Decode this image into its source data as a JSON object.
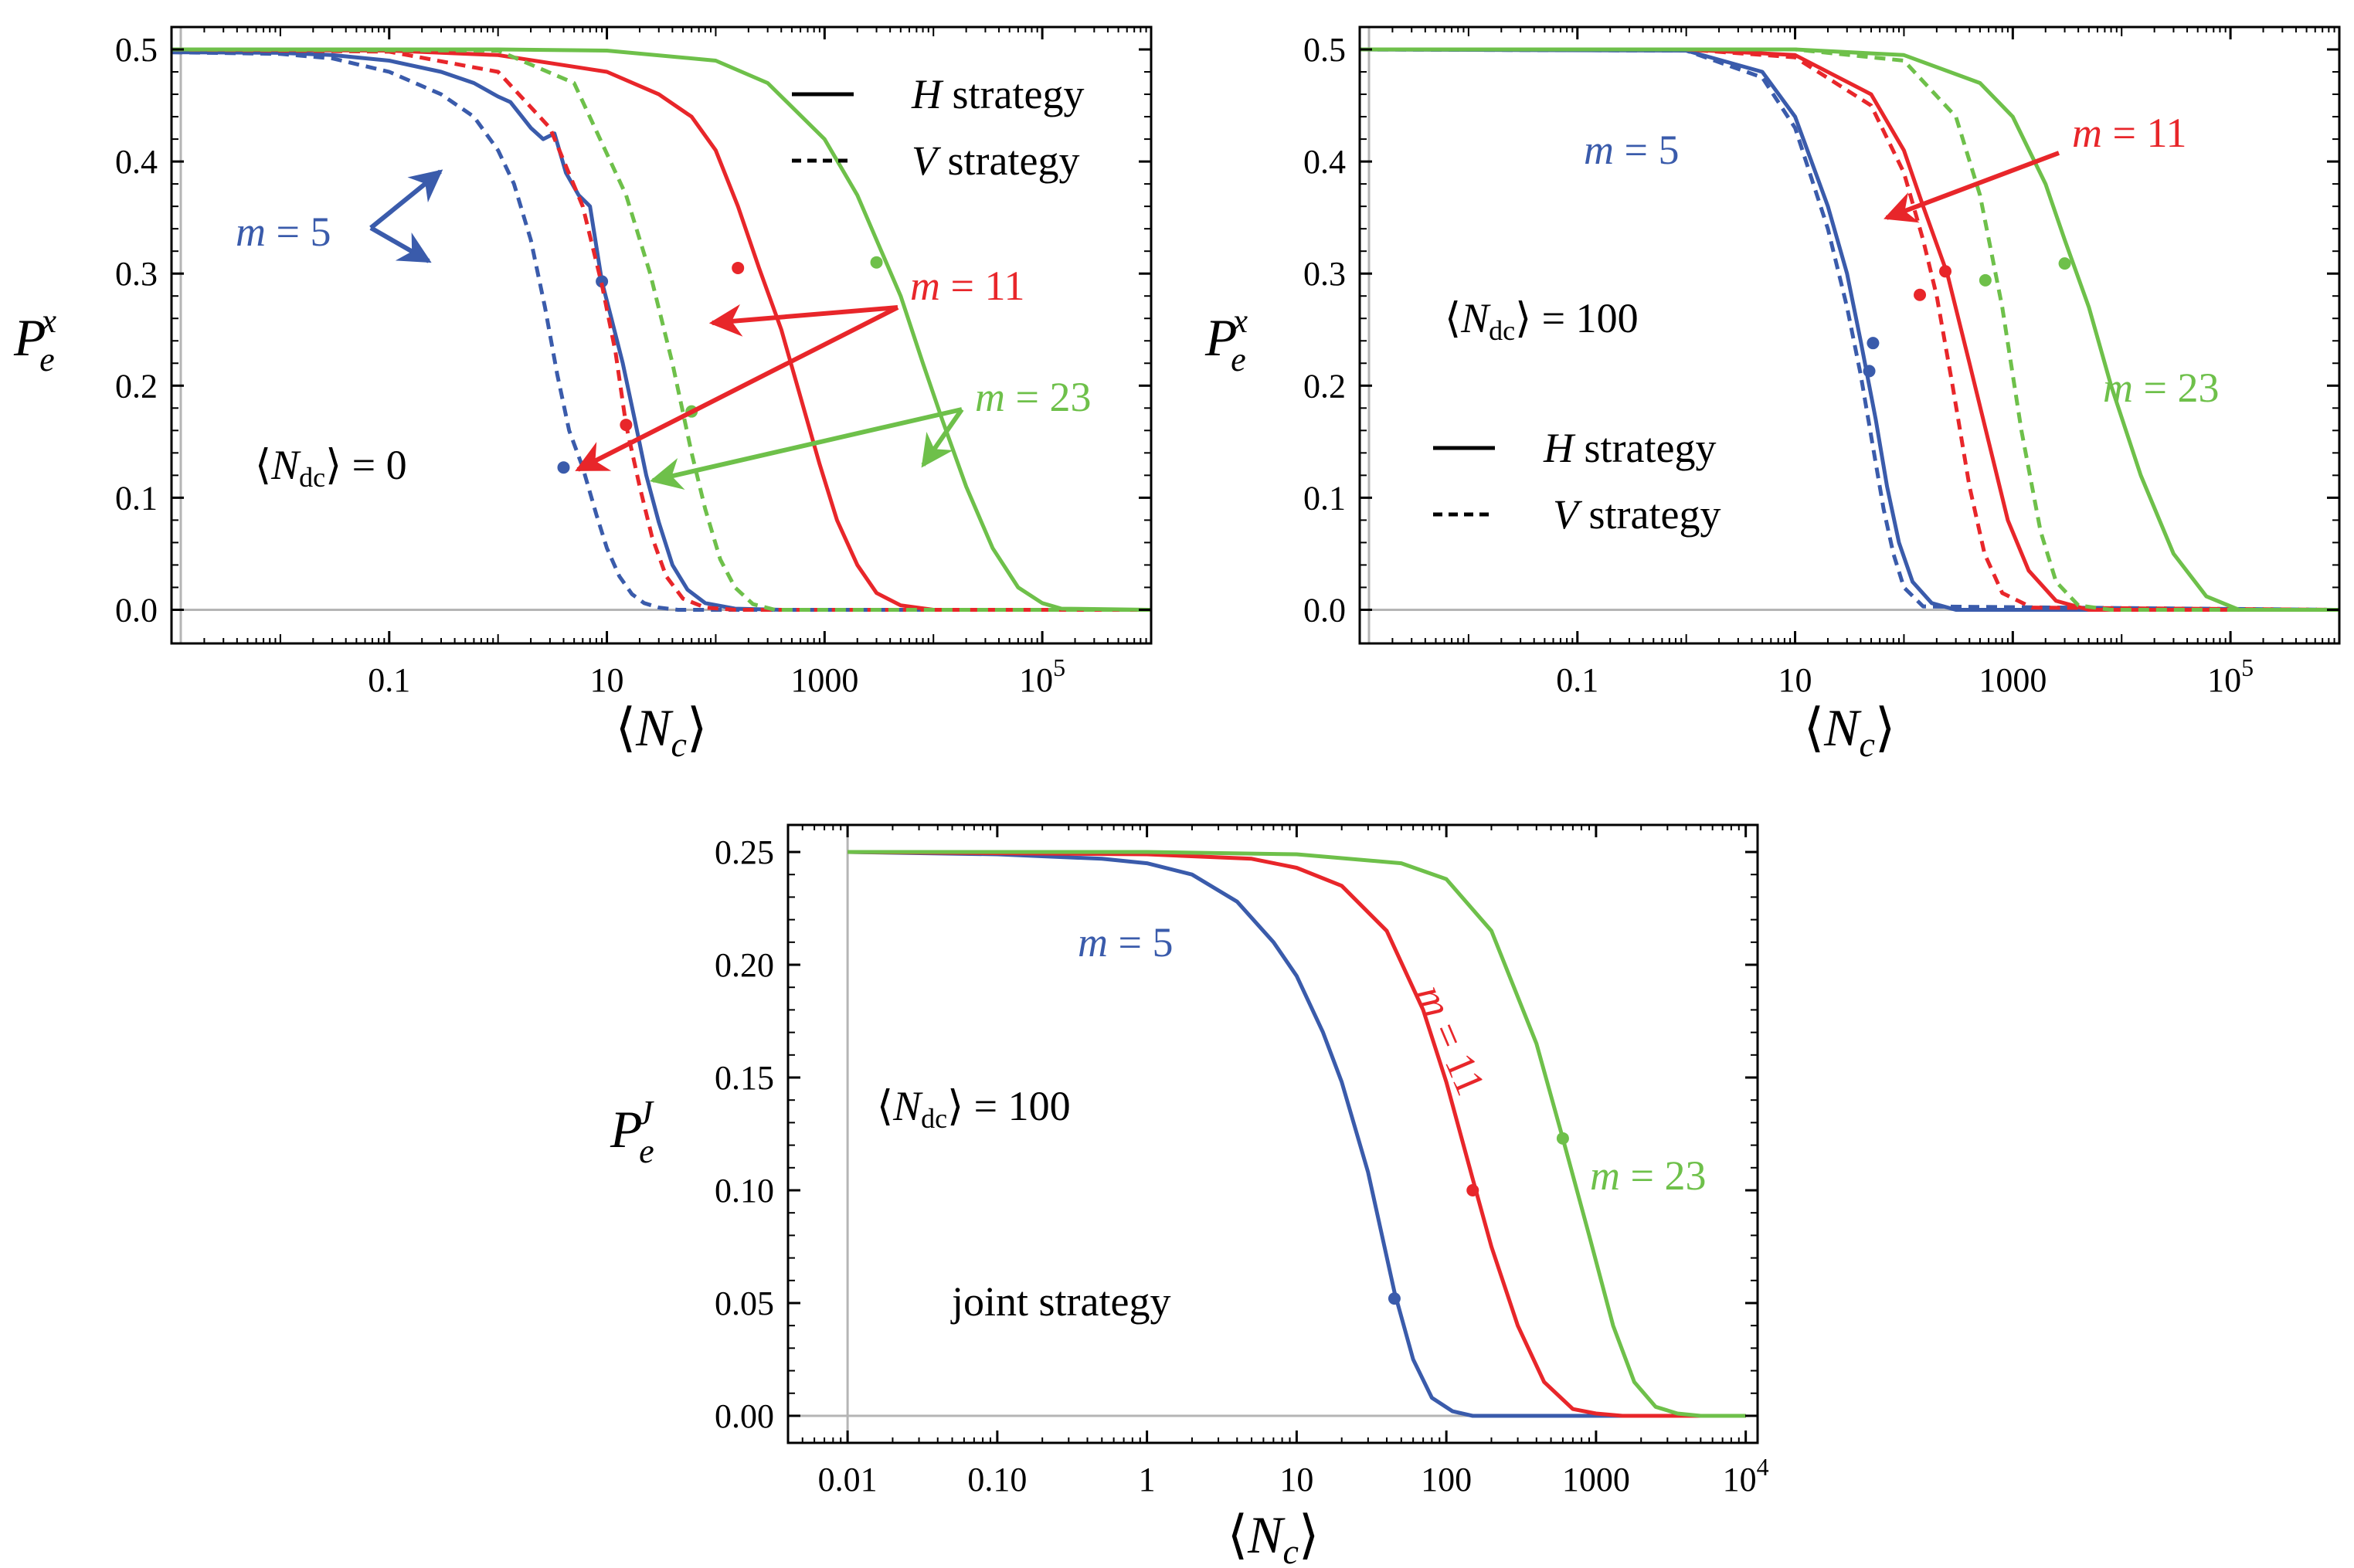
{
  "colors": {
    "m5": "#3a5bab",
    "m11": "#e8262a",
    "m23": "#6ec04a",
    "axis": "#000000",
    "zero": "#b5b5b5"
  },
  "chart_data": [
    {
      "type": "line",
      "id": "top-left",
      "x_scale": "log",
      "xlim": [
        0.001,
        1000000
      ],
      "ylim": [
        -0.03,
        0.52
      ],
      "xticks": [
        {
          "v": 0.1,
          "label": "0.1"
        },
        {
          "v": 10,
          "label": "10"
        },
        {
          "v": 1000,
          "label": "1000"
        },
        {
          "v": 100000,
          "label": "10",
          "sup": "5"
        }
      ],
      "yticks": [
        "0.0",
        "0.1",
        "0.2",
        "0.3",
        "0.4",
        "0.5"
      ],
      "xlabel": "⟨N_c⟩",
      "ylabel": "P_e^x",
      "condition": "⟨N_dc⟩ = 0",
      "legend": [
        "H strategy",
        "V strategy"
      ],
      "series": [
        {
          "name": "m = 5",
          "strategy": "H",
          "color": "m5",
          "style": "solid",
          "x": [
            0.001,
            0.01,
            0.03,
            0.1,
            0.3,
            0.6,
            1,
            1.3,
            1.6,
            2,
            2.6,
            3.3,
            4.2,
            5.5,
            7,
            9,
            11,
            14,
            18,
            23,
            30,
            40,
            55,
            80,
            150,
            400,
            1000000
          ],
          "y": [
            0.4975,
            0.497,
            0.495,
            0.49,
            0.48,
            0.47,
            0.458,
            0.453,
            0.442,
            0.43,
            0.42,
            0.425,
            0.39,
            0.37,
            0.36,
            0.293,
            0.26,
            0.22,
            0.17,
            0.12,
            0.078,
            0.04,
            0.018,
            0.006,
            0.001,
            0,
            0
          ],
          "marker": {
            "x": 9,
            "y": 0.293
          }
        },
        {
          "name": "m = 5",
          "strategy": "V",
          "color": "m5",
          "style": "dashed",
          "x": [
            0.001,
            0.01,
            0.03,
            0.1,
            0.3,
            0.6,
            1,
            1.4,
            2,
            2.7,
            3.5,
            4.5,
            6,
            8,
            10,
            13,
            17,
            22,
            30,
            45,
            80,
            1000000
          ],
          "y": [
            0.4975,
            0.496,
            0.492,
            0.48,
            0.46,
            0.44,
            0.41,
            0.38,
            0.33,
            0.27,
            0.21,
            0.16,
            0.127,
            0.085,
            0.055,
            0.03,
            0.014,
            0.006,
            0.002,
            0,
            0,
            0
          ],
          "marker": {
            "x": 4,
            "y": 0.127
          }
        },
        {
          "name": "m = 11",
          "strategy": "H",
          "color": "m11",
          "style": "solid",
          "x": [
            0.001,
            0.1,
            1,
            10,
            30,
            60,
            100,
            160,
            250,
            400,
            600,
            900,
            1300,
            2000,
            3000,
            5000,
            10000,
            1000000
          ],
          "y": [
            0.5,
            0.499,
            0.495,
            0.48,
            0.46,
            0.44,
            0.41,
            0.36,
            0.305,
            0.25,
            0.19,
            0.13,
            0.08,
            0.04,
            0.015,
            0.004,
            0,
            0
          ],
          "marker": {
            "x": 160,
            "y": 0.305
          }
        },
        {
          "name": "m = 11",
          "strategy": "V",
          "color": "m11",
          "style": "dashed",
          "x": [
            0.001,
            0.1,
            1,
            3,
            6,
            9,
            12,
            15,
            20,
            26,
            35,
            50,
            80,
            150,
            1000000
          ],
          "y": [
            0.5,
            0.498,
            0.48,
            0.43,
            0.36,
            0.29,
            0.23,
            0.165,
            0.11,
            0.065,
            0.03,
            0.01,
            0.002,
            0,
            0
          ],
          "marker": {
            "x": 15,
            "y": 0.165
          }
        },
        {
          "name": "m = 23",
          "strategy": "H",
          "color": "m23",
          "style": "solid",
          "x": [
            0.001,
            1,
            10,
            100,
            300,
            1000,
            2000,
            3000,
            5000,
            8000,
            12000,
            20000,
            35000,
            60000,
            100000,
            150000,
            1000000
          ],
          "y": [
            0.5,
            0.5,
            0.499,
            0.49,
            0.47,
            0.42,
            0.37,
            0.33,
            0.28,
            0.22,
            0.17,
            0.11,
            0.055,
            0.02,
            0.006,
            0.001,
            0
          ],
          "marker": {
            "x": 3000,
            "y": 0.31
          }
        },
        {
          "name": "m = 23",
          "strategy": "V",
          "color": "m23",
          "style": "dashed",
          "x": [
            0.001,
            1,
            5,
            15,
            25,
            40,
            60,
            80,
            110,
            150,
            220,
            350,
            1000000
          ],
          "y": [
            0.5,
            0.499,
            0.47,
            0.37,
            0.3,
            0.22,
            0.14,
            0.09,
            0.045,
            0.02,
            0.005,
            0,
            0
          ],
          "marker": {
            "x": 60,
            "y": 0.177
          }
        }
      ],
      "labels": [
        {
          "text": "m = 5",
          "color": "m5"
        },
        {
          "text": "m = 11",
          "color": "m11"
        },
        {
          "text": "m = 23",
          "color": "m23"
        }
      ]
    },
    {
      "type": "line",
      "id": "top-right",
      "x_scale": "log",
      "xlim": [
        0.001,
        1000000
      ],
      "ylim": [
        -0.03,
        0.52
      ],
      "xticks": [
        {
          "v": 0.1,
          "label": "0.1"
        },
        {
          "v": 10,
          "label": "10"
        },
        {
          "v": 1000,
          "label": "1000"
        },
        {
          "v": 100000,
          "label": "10",
          "sup": "5"
        }
      ],
      "yticks": [
        "0.0",
        "0.1",
        "0.2",
        "0.3",
        "0.4",
        "0.5"
      ],
      "xlabel": "⟨N_c⟩",
      "ylabel": "P_e^x",
      "condition": "⟨N_dc⟩ = 100",
      "legend": [
        "H strategy",
        "V strategy"
      ],
      "series": [
        {
          "name": "m = 5",
          "strategy": "H",
          "color": "m5",
          "style": "solid",
          "x": [
            0.001,
            1,
            5,
            10,
            20,
            30,
            40,
            55,
            70,
            90,
            120,
            180,
            300,
            1000000
          ],
          "y": [
            0.5,
            0.499,
            0.48,
            0.44,
            0.36,
            0.3,
            0.24,
            0.17,
            0.11,
            0.06,
            0.025,
            0.006,
            0,
            0
          ],
          "marker": {
            "x": 52,
            "y": 0.238
          }
        },
        {
          "name": "m = 5",
          "strategy": "V",
          "color": "m5",
          "style": "dashed",
          "x": [
            0.001,
            1,
            5,
            10,
            20,
            30,
            40,
            50,
            65,
            80,
            100,
            150,
            1000000
          ],
          "y": [
            0.5,
            0.499,
            0.475,
            0.43,
            0.34,
            0.27,
            0.21,
            0.155,
            0.09,
            0.05,
            0.02,
            0.003,
            0
          ],
          "marker": {
            "x": 48,
            "y": 0.213
          }
        },
        {
          "name": "m = 11",
          "strategy": "H",
          "color": "m11",
          "style": "solid",
          "x": [
            0.001,
            1,
            10,
            50,
            100,
            150,
            250,
            400,
            600,
            900,
            1400,
            2500,
            5000,
            1000000
          ],
          "y": [
            0.5,
            0.5,
            0.495,
            0.46,
            0.41,
            0.36,
            0.3,
            0.22,
            0.15,
            0.08,
            0.035,
            0.008,
            0,
            0
          ],
          "marker": {
            "x": 240,
            "y": 0.302
          }
        },
        {
          "name": "m = 11",
          "strategy": "V",
          "color": "m11",
          "style": "dashed",
          "x": [
            0.001,
            1,
            10,
            50,
            100,
            150,
            200,
            280,
            400,
            550,
            800,
            1500,
            1000000
          ],
          "y": [
            0.5,
            0.5,
            0.493,
            0.45,
            0.39,
            0.33,
            0.28,
            0.2,
            0.11,
            0.05,
            0.015,
            0.002,
            0
          ],
          "marker": {
            "x": 140,
            "y": 0.281
          }
        },
        {
          "name": "m = 23",
          "strategy": "H",
          "color": "m23",
          "style": "solid",
          "x": [
            0.001,
            10,
            100,
            500,
            1000,
            2000,
            3000,
            5000,
            8000,
            15000,
            30000,
            60000,
            120000,
            1000000
          ],
          "y": [
            0.5,
            0.5,
            0.495,
            0.47,
            0.44,
            0.38,
            0.33,
            0.27,
            0.2,
            0.12,
            0.05,
            0.012,
            0,
            0
          ],
          "marker": {
            "x": 3000,
            "y": 0.309
          }
        },
        {
          "name": "m = 23",
          "strategy": "V",
          "color": "m23",
          "style": "dashed",
          "x": [
            0.001,
            10,
            100,
            300,
            500,
            800,
            1200,
            1800,
            2500,
            4000,
            8000,
            1000000
          ],
          "y": [
            0.5,
            0.5,
            0.49,
            0.44,
            0.37,
            0.27,
            0.16,
            0.07,
            0.025,
            0.004,
            0,
            0
          ],
          "marker": {
            "x": 560,
            "y": 0.294
          }
        }
      ],
      "labels": [
        {
          "text": "m = 5",
          "color": "m5"
        },
        {
          "text": "m = 11",
          "color": "m11"
        },
        {
          "text": "m = 23",
          "color": "m23"
        }
      ]
    },
    {
      "type": "line",
      "id": "bottom",
      "x_scale": "log",
      "xlim": [
        0.004,
        12000
      ],
      "ylim": [
        -0.012,
        0.262
      ],
      "xticks": [
        {
          "v": 0.01,
          "label": "0.01"
        },
        {
          "v": 0.1,
          "label": "0.10"
        },
        {
          "v": 1,
          "label": "1"
        },
        {
          "v": 10,
          "label": "10"
        },
        {
          "v": 100,
          "label": "100"
        },
        {
          "v": 1000,
          "label": "1000"
        },
        {
          "v": 10000,
          "label": "10",
          "sup": "4"
        }
      ],
      "yticks": [
        "0.00",
        "0.05",
        "0.10",
        "0.15",
        "0.20",
        "0.25"
      ],
      "xlabel": "⟨N_c⟩",
      "ylabel": "P_e^J",
      "condition": "⟨N_dc⟩ = 100",
      "note": "joint strategy",
      "series": [
        {
          "name": "m = 5",
          "strategy": "joint",
          "color": "m5",
          "style": "solid",
          "x": [
            0.01,
            0.1,
            0.5,
            1,
            2,
            4,
            7,
            10,
            15,
            20,
            30,
            45,
            60,
            80,
            110,
            150,
            250,
            10000
          ],
          "y": [
            0.25,
            0.249,
            0.247,
            0.245,
            0.24,
            0.228,
            0.21,
            0.195,
            0.17,
            0.148,
            0.108,
            0.055,
            0.025,
            0.008,
            0.002,
            0,
            0,
            0
          ],
          "marker": {
            "x": 45,
            "y": 0.052
          }
        },
        {
          "name": "m = 11",
          "strategy": "joint",
          "color": "m11",
          "style": "solid",
          "x": [
            0.01,
            1,
            5,
            10,
            20,
            40,
            70,
            100,
            150,
            200,
            300,
            450,
            700,
            1000,
            1500,
            10000
          ],
          "y": [
            0.25,
            0.249,
            0.247,
            0.243,
            0.235,
            0.215,
            0.18,
            0.148,
            0.105,
            0.075,
            0.04,
            0.015,
            0.003,
            0.001,
            0,
            0
          ],
          "marker": {
            "x": 150,
            "y": 0.1
          }
        },
        {
          "name": "m = 23",
          "strategy": "joint",
          "color": "m23",
          "style": "solid",
          "x": [
            0.01,
            1,
            10,
            50,
            100,
            200,
            400,
            600,
            900,
            1300,
            1800,
            2500,
            3500,
            5000,
            10000
          ],
          "y": [
            0.25,
            0.25,
            0.249,
            0.245,
            0.238,
            0.215,
            0.165,
            0.123,
            0.08,
            0.04,
            0.015,
            0.004,
            0.001,
            0,
            0
          ],
          "marker": {
            "x": 600,
            "y": 0.123
          }
        }
      ],
      "labels": [
        {
          "text": "m = 5",
          "color": "m5"
        },
        {
          "text": "m = 11",
          "color": "m11"
        },
        {
          "text": "m = 23",
          "color": "m23"
        }
      ]
    }
  ]
}
